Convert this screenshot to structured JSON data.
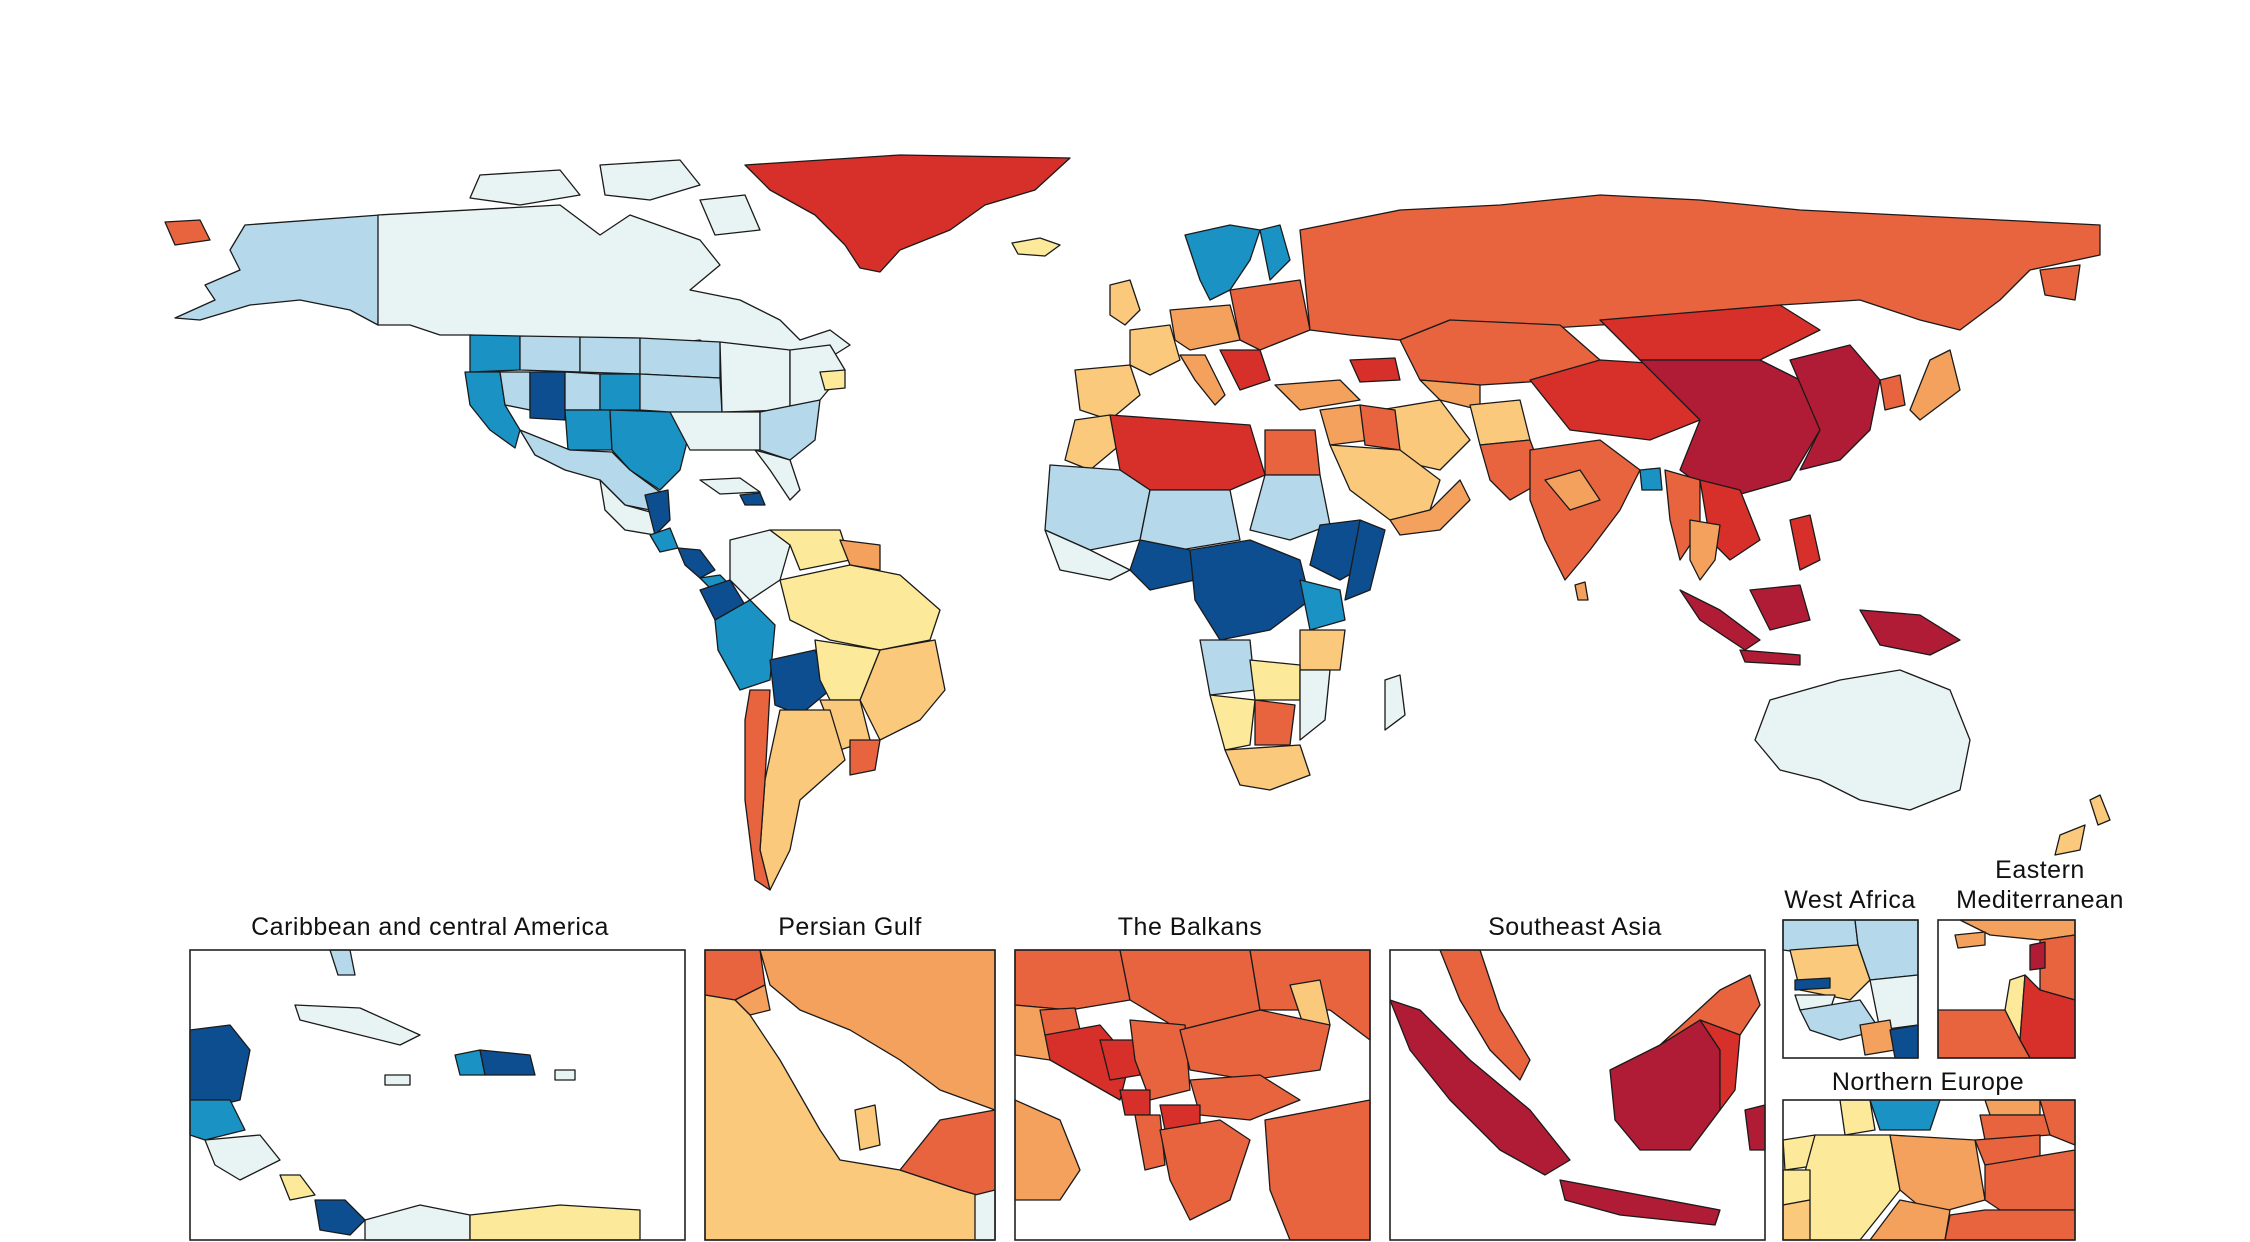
{
  "palette": {
    "c1": "#e8f4f3",
    "c2": "#b5d8ea",
    "c3": "#1a93c4",
    "c4": "#0d4e91",
    "c5": "#fde99a",
    "c6": "#fbc97c",
    "c7": "#f4a15d",
    "c8": "#e8643f",
    "c9": "#d7302a",
    "c10": "#b01b35"
  },
  "insets": {
    "caribbean": "Caribbean and central America",
    "persian_gulf": "Persian Gulf",
    "balkans": "The Balkans",
    "southeast_asia": "Southeast Asia",
    "west_africa": "West Africa",
    "eastern_med_line1": "Eastern",
    "eastern_med_line2": "Mediterranean",
    "northern_europe": "Northern Europe"
  }
}
